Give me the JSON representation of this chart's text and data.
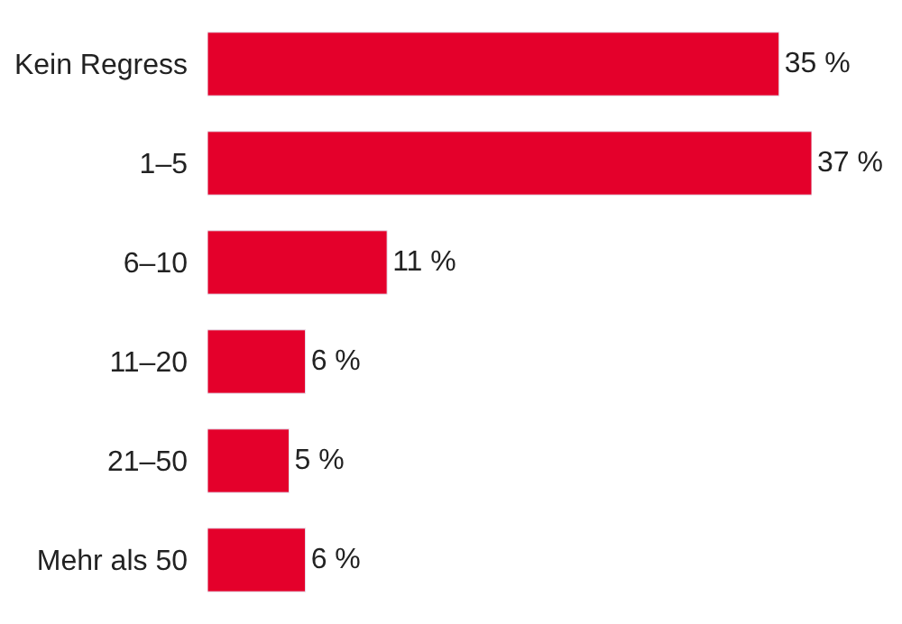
{
  "chart_data": {
    "type": "bar",
    "orientation": "horizontal",
    "categories": [
      "Kein Regress",
      "1–5",
      "6–10",
      "11–20",
      "21–50",
      "Mehr als 50"
    ],
    "values": [
      35,
      37,
      11,
      6,
      5,
      6
    ],
    "value_labels": [
      "35 %",
      "37 %",
      "11 %",
      "6 %",
      "5 %",
      "6 %"
    ],
    "color": "#e4002b",
    "legend": false
  }
}
